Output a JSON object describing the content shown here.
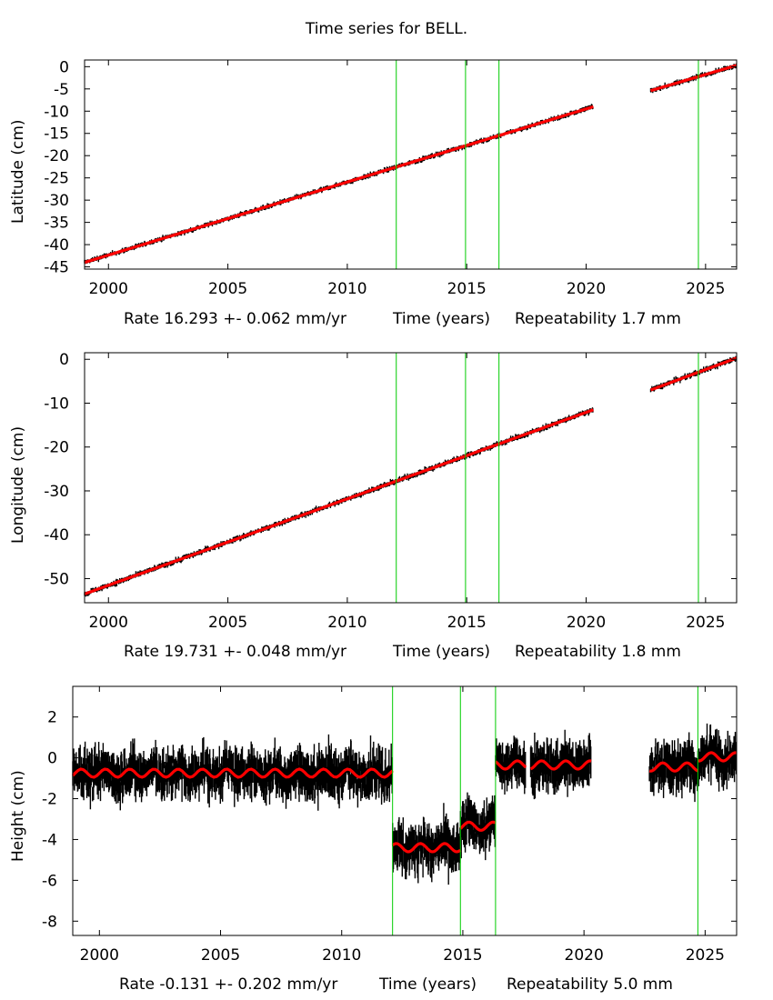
{
  "figure_title": "Time series for BELL.",
  "chart_data": [
    {
      "type": "scatter",
      "name": "latitude",
      "ylabel": "Latitude (cm)",
      "xlabel": "Time (years)",
      "rate_text": "Rate 16.293 +- 0.062 mm/yr",
      "repeat_text": "Repeatability 1.7 mm",
      "xlim": [
        1999.0,
        2026.3
      ],
      "ylim": [
        -45.5,
        1.5
      ],
      "xticks": [
        2000,
        2005,
        2010,
        2015,
        2020,
        2025
      ],
      "yticks": [
        0,
        -5,
        -10,
        -15,
        -20,
        -25,
        -30,
        -35,
        -40,
        -45
      ],
      "events": [
        2012.05,
        2014.95,
        2016.35,
        2024.7
      ],
      "segments": [
        {
          "x0": 1999.0,
          "x1": 2020.3,
          "y0": -44.0,
          "y1": -9.0
        },
        {
          "x0": 2022.7,
          "x1": 2026.3,
          "y0": -5.4,
          "y1": 0.3
        }
      ],
      "noise": 0.35,
      "model_amp": 0.0
    },
    {
      "type": "scatter",
      "name": "longitude",
      "ylabel": "Longitude (cm)",
      "xlabel": "Time (years)",
      "rate_text": "Rate 19.731 +- 0.048 mm/yr",
      "repeat_text": "Repeatability 1.8 mm",
      "xlim": [
        1999.0,
        2026.3
      ],
      "ylim": [
        -55.5,
        1.5
      ],
      "xticks": [
        2000,
        2005,
        2010,
        2015,
        2020,
        2025
      ],
      "yticks": [
        0,
        -10,
        -20,
        -30,
        -40,
        -50
      ],
      "events": [
        2012.05,
        2014.95,
        2016.35,
        2024.7
      ],
      "segments": [
        {
          "x0": 1999.0,
          "x1": 2020.3,
          "y0": -53.5,
          "y1": -11.5
        },
        {
          "x0": 2022.7,
          "x1": 2026.3,
          "y0": -7.0,
          "y1": 0.3
        }
      ],
      "noise": 0.4,
      "model_amp": 0.0
    },
    {
      "type": "scatter",
      "name": "height",
      "ylabel": "Height (cm)",
      "xlabel": "Time (years)",
      "rate_text": "Rate -0.131 +- 0.202 mm/yr",
      "repeat_text": "Repeatability 5.0 mm",
      "xlim": [
        1998.9,
        2026.3
      ],
      "ylim": [
        -8.7,
        3.5
      ],
      "xticks": [
        2000,
        2005,
        2010,
        2015,
        2020,
        2025
      ],
      "yticks": [
        2,
        0,
        -2,
        -4,
        -6,
        -8
      ],
      "events": [
        2012.1,
        2014.9,
        2016.35,
        2024.7
      ],
      "segments": [
        {
          "x0": 1998.9,
          "x1": 2012.1,
          "y0": -0.75,
          "y1": -0.75
        },
        {
          "x0": 2012.1,
          "x1": 2014.9,
          "y0": -4.4,
          "y1": -4.4
        },
        {
          "x0": 2014.9,
          "x1": 2016.35,
          "y0": -3.35,
          "y1": -3.35
        },
        {
          "x0": 2016.35,
          "x1": 2017.6,
          "y0": -0.35,
          "y1": -0.35
        },
        {
          "x0": 2017.8,
          "x1": 2020.3,
          "y0": -0.35,
          "y1": -0.35
        },
        {
          "x0": 2022.7,
          "x1": 2024.7,
          "y0": -0.45,
          "y1": -0.45
        },
        {
          "x0": 2024.7,
          "x1": 2026.3,
          "y0": 0.05,
          "y1": 0.05
        }
      ],
      "noise": 0.75,
      "model_amp": 0.2
    }
  ]
}
